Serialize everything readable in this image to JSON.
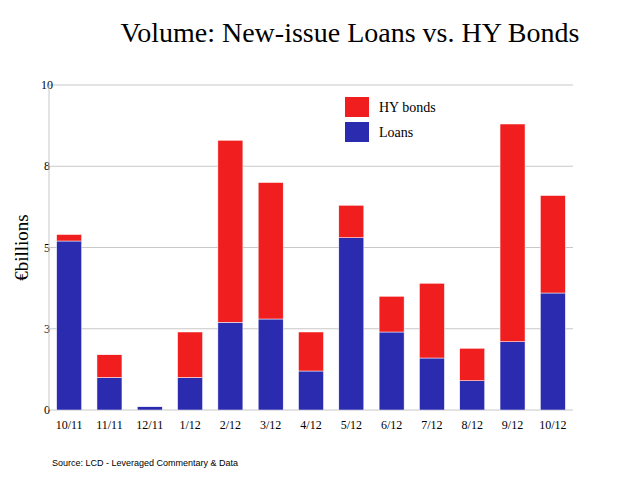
{
  "chart_data": {
    "type": "bar",
    "title": "Volume: New-issue Loans vs. HY Bonds",
    "y_label": "€billions",
    "source": "Source: LCD - Leveraged Commentary & Data",
    "categories": [
      "10/11",
      "11/11",
      "12/11",
      "1/12",
      "2/12",
      "3/12",
      "4/12",
      "5/12",
      "6/12",
      "7/12",
      "8/12",
      "9/12",
      "10/12"
    ],
    "series": [
      {
        "name": "Loans",
        "color": "#2b2bb0",
        "values": [
          5.2,
          1.0,
          0.1,
          1.0,
          2.7,
          2.8,
          1.2,
          5.3,
          2.4,
          1.6,
          0.9,
          2.1,
          3.6
        ]
      },
      {
        "name": "HY bonds",
        "color": "#f01e1e",
        "values": [
          0.2,
          0.7,
          0,
          1.4,
          5.6,
          4.2,
          1.2,
          1.0,
          1.1,
          2.3,
          1.0,
          6.7,
          3.0
        ]
      }
    ],
    "stacked": true,
    "ylim": [
      0,
      10
    ],
    "yticks": [
      0,
      {
        "value": 2.5,
        "label": "3"
      },
      5,
      {
        "value": 7.5,
        "label": "8"
      },
      10
    ],
    "grid": true,
    "legend": "upper right"
  }
}
